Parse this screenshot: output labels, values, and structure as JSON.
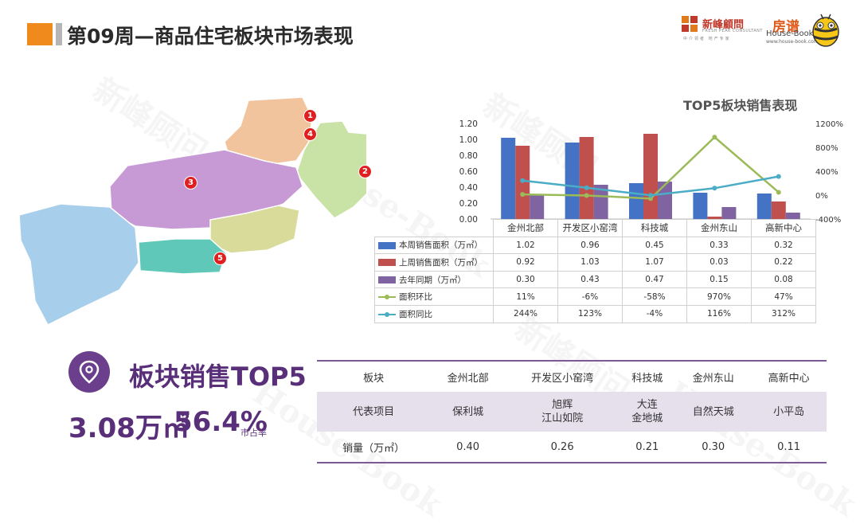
{
  "header": {
    "title": "第09周—商品住宅板块市场表现",
    "logo1_name": "新峰顧問",
    "logo1_en": "FRESH PEAK CONSULTANT",
    "logo1_sub": "中介领者 地产专家",
    "logo2_cn": "房谱",
    "logo2_en": "House-Book",
    "logo2_url": "www.house-book.com.cn"
  },
  "watermark": {
    "text_cn": "新峰顾问",
    "text_en": "House-Book"
  },
  "map": {
    "colors": {
      "northeast": "#f2c49e",
      "east": "#c8e3a5",
      "center": "#c79ad6",
      "west": "#a7cfec",
      "southeast": "#d9db9a",
      "south": "#5fc8b8",
      "marker": "#e02020"
    },
    "markers": [
      "1",
      "2",
      "3",
      "4",
      "5"
    ]
  },
  "chart_data": {
    "type": "bar",
    "title": "TOP5板块销售表现",
    "categories": [
      "金州北部",
      "开发区小窑湾",
      "科技城",
      "金州东山",
      "高新中心"
    ],
    "series": [
      {
        "name": "本周销售面积（万㎡）",
        "kind": "bar",
        "axis": "left",
        "color": "#4472c4",
        "values": [
          1.02,
          0.96,
          0.45,
          0.33,
          0.32
        ]
      },
      {
        "name": "上周销售面积（万㎡）",
        "kind": "bar",
        "axis": "left",
        "color": "#c0504d",
        "values": [
          0.92,
          1.03,
          1.07,
          0.03,
          0.22
        ]
      },
      {
        "name": "去年同期（万㎡）",
        "kind": "bar",
        "axis": "left",
        "color": "#8064a2",
        "values": [
          0.3,
          0.43,
          0.47,
          0.15,
          0.08
        ]
      },
      {
        "name": "面积环比",
        "kind": "line",
        "axis": "right",
        "color": "#9bbb59",
        "values": [
          11,
          -6,
          -58,
          970,
          47
        ]
      },
      {
        "name": "面积同比",
        "kind": "line",
        "axis": "right",
        "color": "#4bacc6",
        "values": [
          244,
          123,
          -4,
          116,
          312
        ]
      }
    ],
    "table_rows": [
      [
        "1.02",
        "0.96",
        "0.45",
        "0.33",
        "0.32"
      ],
      [
        "0.92",
        "1.03",
        "1.07",
        "0.03",
        "0.22"
      ],
      [
        "0.30",
        "0.43",
        "0.47",
        "0.15",
        "0.08"
      ],
      [
        "11%",
        "-6%",
        "-58%",
        "970%",
        "47%"
      ],
      [
        "244%",
        "123%",
        "-4%",
        "116%",
        "312%"
      ]
    ],
    "y_left": {
      "min": 0,
      "max": 1.2,
      "ticks": [
        "0.00",
        "0.20",
        "0.40",
        "0.60",
        "0.80",
        "1.00",
        "1.20"
      ]
    },
    "y_right": {
      "min": -400,
      "max": 1200,
      "ticks": [
        "-400%",
        "0%",
        "400%",
        "800%",
        "1200%"
      ]
    }
  },
  "kpi": {
    "title": "板块销售TOP5",
    "volume": "3.08万㎡",
    "share": "56.4%",
    "share_label": "市占率"
  },
  "top5_table": {
    "header": [
      "板块",
      "金州北部",
      "开发区小窑湾",
      "科技城",
      "金州东山",
      "高新中心"
    ],
    "projects": [
      "代表项目",
      "保利城",
      "旭辉\n江山如院",
      "大连\n金地城",
      "自然天城",
      "小平岛"
    ],
    "sales": [
      "销量（万㎡）",
      "0.40",
      "0.26",
      "0.21",
      "0.30",
      "0.11"
    ]
  }
}
